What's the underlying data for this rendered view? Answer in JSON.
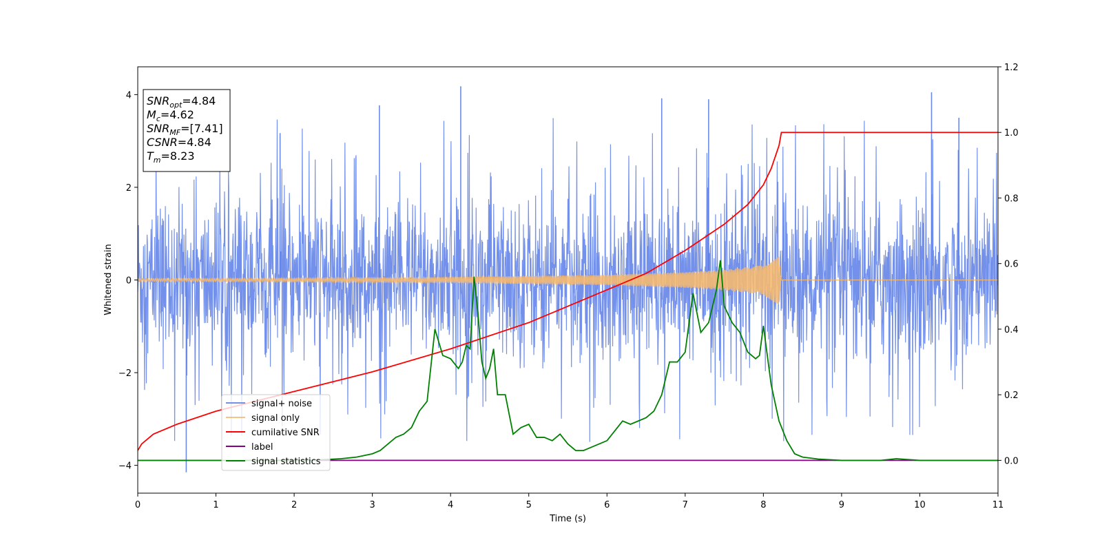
{
  "chart_data": {
    "type": "line",
    "xlabel": "Time (s)",
    "ylabel": "Whitened strain",
    "xlim": [
      0,
      11
    ],
    "ylim_left": [
      -4.6,
      4.6
    ],
    "ylim_right": [
      -0.1,
      1.2
    ],
    "x_ticks": [
      0,
      1,
      2,
      3,
      4,
      5,
      6,
      7,
      8,
      9,
      10,
      11
    ],
    "y_ticks_left": [
      -4,
      -2,
      0,
      2,
      4
    ],
    "y_ticks_right": [
      0.0,
      0.2,
      0.4,
      0.6,
      0.8,
      1.0,
      1.2
    ],
    "legend_position": "lower-left",
    "colors": {
      "noise": "#5b7de6",
      "signal": "#f5b971",
      "cumulative": "#ff0000",
      "label": "#800080",
      "statistics": "#008000"
    },
    "info_box": [
      {
        "main": "SNR",
        "sub": "opt",
        "rest": "=4.84"
      },
      {
        "main": "M",
        "sub": "c",
        "rest": "=4.62"
      },
      {
        "main": "SNR",
        "sub": "MF",
        "rest": "=[7.41]"
      },
      {
        "main": "CSNR",
        "sub": "",
        "rest": "=4.84"
      },
      {
        "main": "T",
        "sub": "m",
        "rest": "=8.23"
      }
    ],
    "series": [
      {
        "name": "signal+ noise",
        "axis": "left",
        "kind": "noise",
        "amplitude_typical": 2.0,
        "x_range": [
          0,
          11
        ],
        "peaks": [
          {
            "x": 0.62,
            "y": -4.15
          },
          {
            "x": 4.13,
            "y": 4.18
          },
          {
            "x": 3.09,
            "y": 3.77
          },
          {
            "x": 10.15,
            "y": 4.05
          },
          {
            "x": 1.82,
            "y": 3.17
          },
          {
            "x": 6.7,
            "y": 3.92
          },
          {
            "x": 7.3,
            "y": 3.9
          },
          {
            "x": 10.5,
            "y": 3.5
          }
        ]
      },
      {
        "name": "signal only",
        "axis": "left",
        "kind": "chirp",
        "t_merge": 8.23,
        "amplitude_points": [
          [
            0,
            0.03
          ],
          [
            2,
            0.04
          ],
          [
            4,
            0.06
          ],
          [
            6,
            0.11
          ],
          [
            7,
            0.17
          ],
          [
            7.5,
            0.22
          ],
          [
            8.0,
            0.32
          ],
          [
            8.2,
            0.55
          ],
          [
            8.23,
            0.0
          ],
          [
            11,
            0.0
          ]
        ]
      },
      {
        "name": "cumilative SNR",
        "axis": "right",
        "kind": "cumulative",
        "x": [
          0,
          0.05,
          0.2,
          0.5,
          1.0,
          2.0,
          3.0,
          4.0,
          5.0,
          6.0,
          6.5,
          7.0,
          7.5,
          7.8,
          8.0,
          8.1,
          8.2,
          8.23,
          11
        ],
        "y": [
          0.03,
          0.05,
          0.08,
          0.11,
          0.15,
          0.21,
          0.27,
          0.34,
          0.42,
          0.52,
          0.57,
          0.64,
          0.72,
          0.78,
          0.84,
          0.89,
          0.96,
          1.0,
          1.0
        ]
      },
      {
        "name": "label",
        "axis": "right",
        "kind": "line",
        "x": [
          0,
          11
        ],
        "y": [
          0.0,
          0.0
        ]
      },
      {
        "name": "signal statistics",
        "axis": "right",
        "kind": "line",
        "x": [
          0,
          2.2,
          2.6,
          2.8,
          3.0,
          3.1,
          3.2,
          3.3,
          3.4,
          3.5,
          3.6,
          3.7,
          3.8,
          3.9,
          4.0,
          4.1,
          4.15,
          4.2,
          4.25,
          4.3,
          4.35,
          4.4,
          4.45,
          4.5,
          4.55,
          4.6,
          4.7,
          4.8,
          4.9,
          5.0,
          5.1,
          5.2,
          5.3,
          5.4,
          5.5,
          5.6,
          5.7,
          5.8,
          5.9,
          6.0,
          6.1,
          6.2,
          6.3,
          6.4,
          6.5,
          6.6,
          6.7,
          6.8,
          6.9,
          7.0,
          7.1,
          7.2,
          7.3,
          7.4,
          7.45,
          7.5,
          7.6,
          7.7,
          7.8,
          7.9,
          7.95,
          8.0,
          8.1,
          8.2,
          8.3,
          8.4,
          8.5,
          8.7,
          9.0,
          9.5,
          9.7,
          10.0,
          11.0
        ],
        "y": [
          0.0,
          0.0,
          0.005,
          0.01,
          0.02,
          0.03,
          0.05,
          0.07,
          0.08,
          0.1,
          0.15,
          0.18,
          0.4,
          0.32,
          0.31,
          0.28,
          0.3,
          0.35,
          0.34,
          0.56,
          0.45,
          0.3,
          0.25,
          0.28,
          0.34,
          0.2,
          0.2,
          0.08,
          0.1,
          0.11,
          0.07,
          0.07,
          0.06,
          0.08,
          0.05,
          0.03,
          0.03,
          0.04,
          0.05,
          0.06,
          0.09,
          0.12,
          0.11,
          0.12,
          0.13,
          0.15,
          0.2,
          0.3,
          0.3,
          0.33,
          0.51,
          0.39,
          0.42,
          0.52,
          0.61,
          0.47,
          0.42,
          0.39,
          0.33,
          0.31,
          0.32,
          0.41,
          0.23,
          0.12,
          0.06,
          0.02,
          0.01,
          0.004,
          0.0,
          0.0,
          0.005,
          0.0,
          0.0
        ]
      }
    ]
  }
}
